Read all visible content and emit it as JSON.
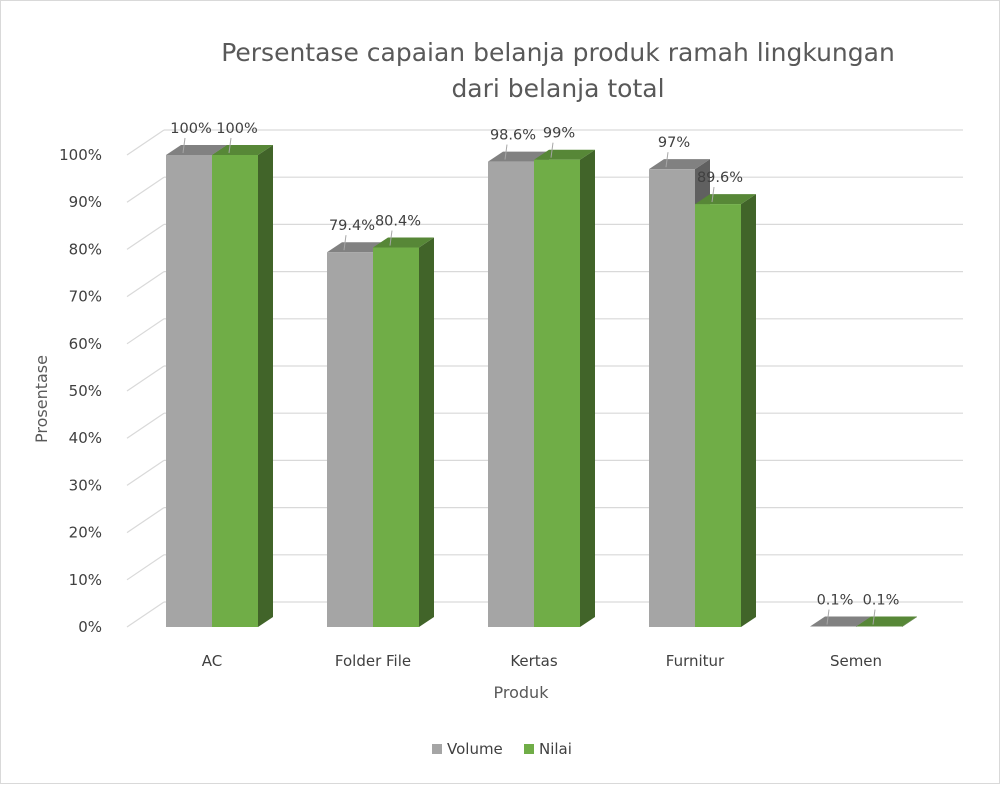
{
  "chart_data": {
    "type": "bar",
    "title": [
      "Persentase capaian belanja produk ramah lingkungan",
      "dari belanja total"
    ],
    "xlabel": "Produk",
    "ylabel": "Prosentase",
    "categories": [
      "AC",
      "Folder File",
      "Kertas",
      "Furnitur",
      "Semen"
    ],
    "series": [
      {
        "name": "Volume",
        "values": [
          100,
          79.4,
          98.6,
          97,
          0.1
        ],
        "labels": [
          "100%",
          "79.4%",
          "98.6%",
          "97%",
          "0.1%"
        ],
        "color": "#a5a5a5"
      },
      {
        "name": "Nilai",
        "values": [
          100,
          80.4,
          99,
          89.6,
          0.1
        ],
        "labels": [
          "100%",
          "80.4%",
          "99%",
          "89.6%",
          "0.1%"
        ],
        "color": "#70ad47"
      }
    ],
    "ylim": [
      0,
      100
    ],
    "yticks": [
      "0%",
      "10%",
      "20%",
      "30%",
      "40%",
      "50%",
      "60%",
      "70%",
      "80%",
      "90%",
      "100%"
    ],
    "grid": true,
    "legend_position": "bottom",
    "style": "3d-clustered-column"
  }
}
